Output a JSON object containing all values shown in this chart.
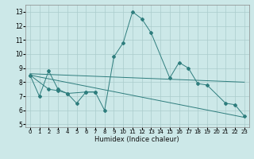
{
  "title": "",
  "xlabel": "Humidex (Indice chaleur)",
  "background_color": "#cce8e8",
  "grid_color": "#aacccc",
  "line_color": "#2e7d7d",
  "xlim": [
    -0.5,
    23.5
  ],
  "ylim": [
    4.8,
    13.5
  ],
  "yticks": [
    5,
    6,
    7,
    8,
    9,
    10,
    11,
    12,
    13
  ],
  "xticks": [
    0,
    1,
    2,
    3,
    4,
    5,
    6,
    7,
    8,
    9,
    10,
    11,
    12,
    13,
    14,
    15,
    16,
    17,
    18,
    19,
    20,
    21,
    22,
    23
  ],
  "series": [
    {
      "x": [
        0,
        1,
        2,
        3,
        4,
        5,
        6,
        7,
        8,
        9,
        10,
        11,
        12,
        13,
        15,
        16,
        17,
        18,
        19,
        21,
        22,
        23
      ],
      "y": [
        8.5,
        7.0,
        8.8,
        7.5,
        7.2,
        6.5,
        7.3,
        7.3,
        6.0,
        9.8,
        10.8,
        13.0,
        12.5,
        11.5,
        8.3,
        9.4,
        9.0,
        7.9,
        7.8,
        6.5,
        6.4,
        5.6
      ],
      "has_markers": true
    },
    {
      "x": [
        0,
        2,
        3,
        4,
        6,
        7
      ],
      "y": [
        8.5,
        7.5,
        7.4,
        7.2,
        7.3,
        7.3
      ],
      "has_markers": true
    },
    {
      "x": [
        0,
        23
      ],
      "y": [
        8.6,
        8.0
      ],
      "has_markers": false
    },
    {
      "x": [
        0,
        23
      ],
      "y": [
        8.5,
        5.5
      ],
      "has_markers": false
    }
  ]
}
